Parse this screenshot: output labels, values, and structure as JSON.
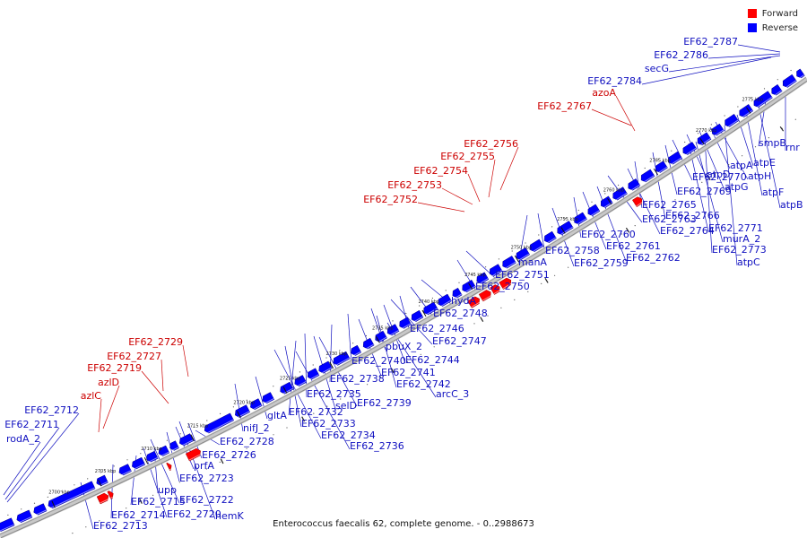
{
  "legend": {
    "forward": {
      "label": "Forward",
      "color": "#ff0000"
    },
    "reverse": {
      "label": "Reverse",
      "color": "#0000ff"
    }
  },
  "caption": "Enterococcus faecalis 62, complete genome. - 0..2988673",
  "axis": {
    "unit": "kbp",
    "ticks": [
      "2700 kbp",
      "2705 kbp",
      "2710 kbp",
      "2715 kbp",
      "2720 kbp",
      "2725 kbp",
      "2730 kbp",
      "2735 kbp",
      "2740 kbp",
      "2745 kbp",
      "2750 kbp",
      "2755 kbp",
      "2760 kbp",
      "2765 kbp",
      "2770 kbp",
      "2775 kbp"
    ]
  },
  "genes_forward": [
    "EF62_2729",
    "EF62_2727",
    "EF62_2719",
    "azlD",
    "azlC",
    "EF62_2756",
    "EF62_2755",
    "EF62_2754",
    "EF62_2753",
    "EF62_2752",
    "azoA",
    "EF62_2767"
  ],
  "genes_reverse_upper": [
    "EF62_2787",
    "EF62_2786",
    "secG",
    "EF62_2784",
    "EF62_2712",
    "EF62_2711",
    "rodA_2"
  ],
  "genes_reverse_lower": [
    "manA",
    "EF62_2751",
    "EF62_2750",
    "hydA",
    "EF62_2748",
    "EF62_2746",
    "EF62_2747",
    "pbuX_2",
    "EF62_2744",
    "EF62_2740",
    "EF62_2741",
    "EF62_2742",
    "EF62_2738",
    "arcC_3",
    "EF62_2735",
    "selD",
    "EF62_2739",
    "EF62_2732",
    "EF62_2733",
    "EF62_2734",
    "EF62_2736",
    "gltA",
    "nifJ_2",
    "EF62_2728",
    "EF62_2726",
    "prfA",
    "EF62_2723",
    "upp",
    "EF62_2715",
    "EF62_2722",
    "EF62_2714",
    "EF62_2720",
    "hemK",
    "EF62_2713",
    "EF62_2758",
    "EF62_2759",
    "EF62_2760",
    "EF62_2761",
    "EF62_2762",
    "EF62_2763",
    "EF62_2764",
    "EF62_2765",
    "EF62_2766",
    "EF62_2769",
    "EF62_2770",
    "atpD",
    "atpG",
    "atpA",
    "atpH",
    "atpE",
    "atpF",
    "atpB",
    "smpB",
    "rnr",
    "EF62_2771",
    "murA_2",
    "EF62_2773",
    "atpC"
  ]
}
